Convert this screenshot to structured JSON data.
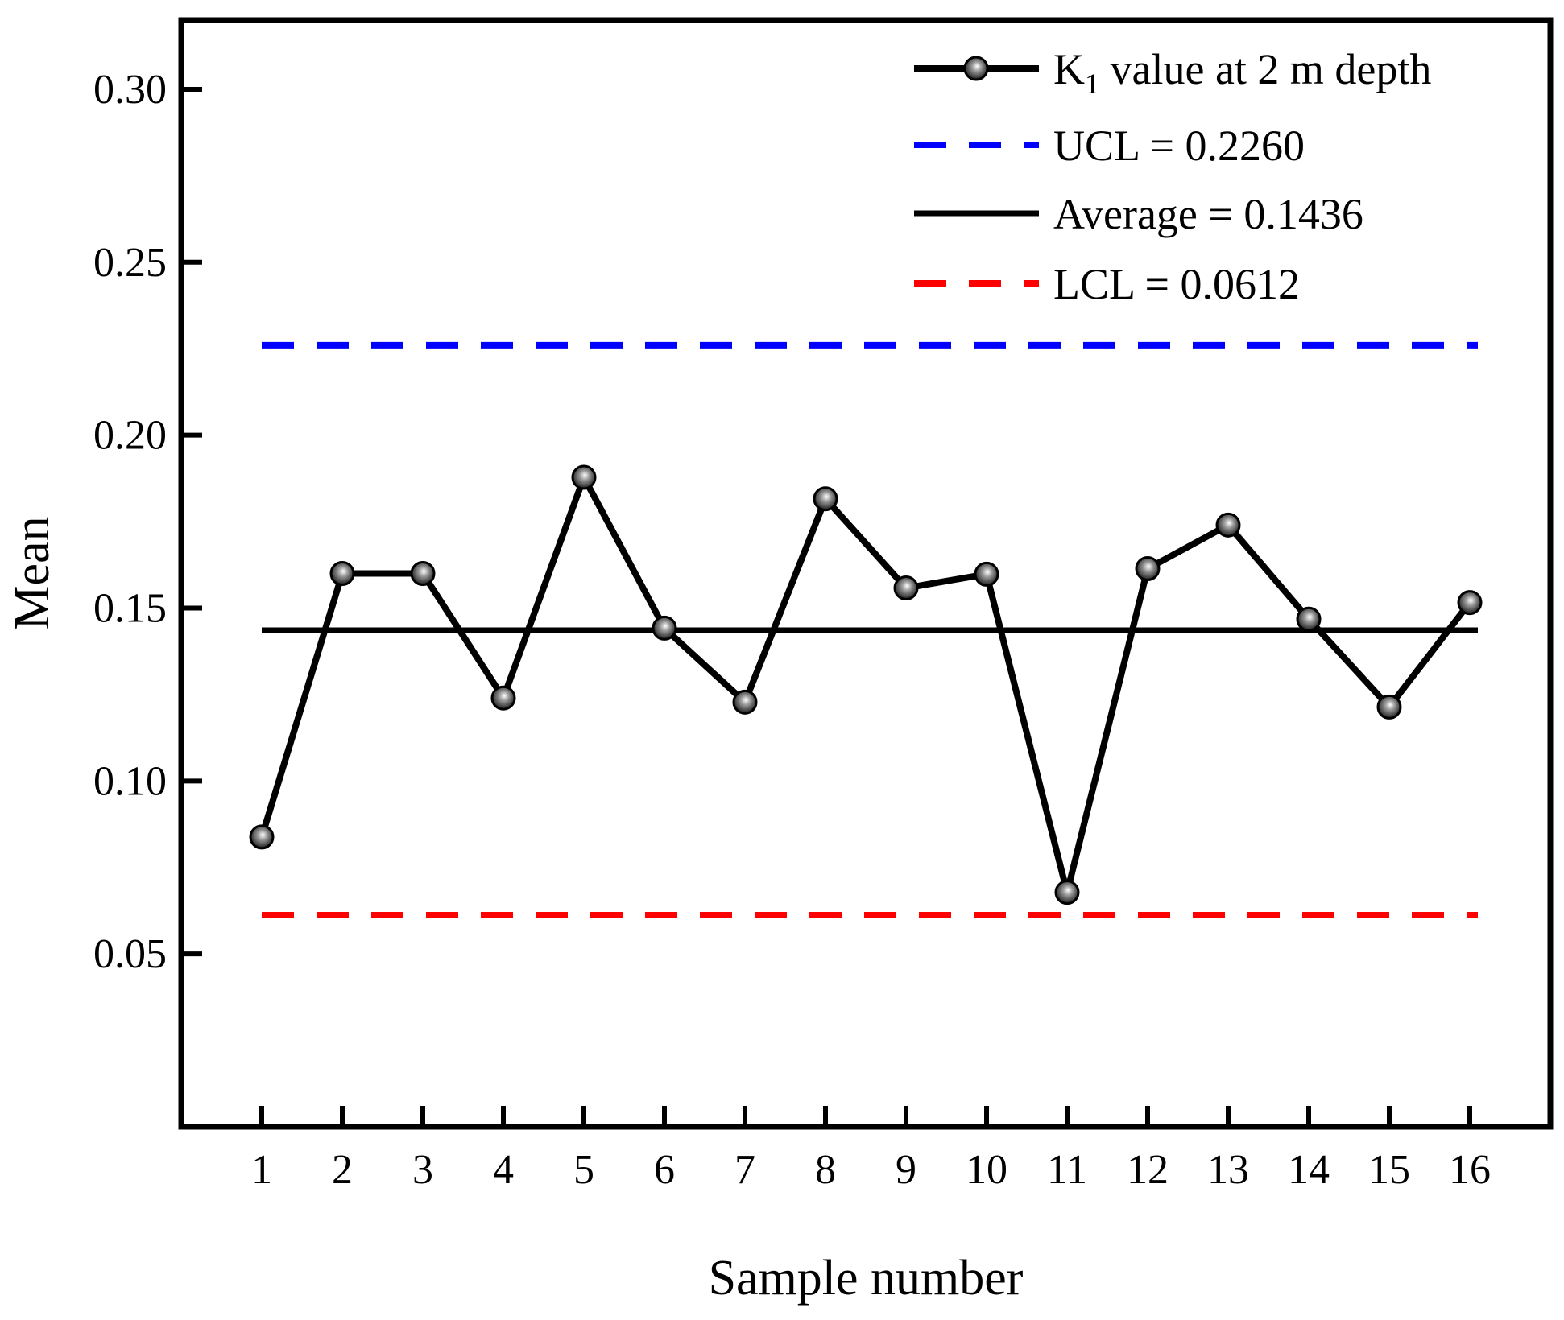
{
  "chart_data": {
    "type": "line",
    "title": "",
    "xlabel": "Sample number",
    "ylabel": "Mean",
    "xlim": [
      0,
      17
    ],
    "ylim": [
      0,
      0.32
    ],
    "x_ticks": [
      1,
      2,
      3,
      4,
      5,
      6,
      7,
      8,
      9,
      10,
      11,
      12,
      13,
      14,
      15,
      16
    ],
    "x_tick_labels": [
      "1",
      "2",
      "3",
      "4",
      "5",
      "6",
      "7",
      "8",
      "9",
      "10",
      "11",
      "12",
      "13",
      "14",
      "15",
      "16"
    ],
    "y_ticks": [
      0.05,
      0.1,
      0.15,
      0.2,
      0.25,
      0.3
    ],
    "y_tick_labels": [
      "0.05",
      "0.10",
      "0.15",
      "0.20",
      "0.25",
      "0.30"
    ],
    "grid": false,
    "legend_position": "top-right",
    "series": [
      {
        "name": "K1 value at 2 m depth",
        "legend_main": "K",
        "legend_sub": "1",
        "legend_rest": " value at 2 m depth",
        "x": [
          1,
          2,
          3,
          4,
          5,
          6,
          7,
          8,
          9,
          10,
          11,
          12,
          13,
          14,
          15,
          16
        ],
        "values": [
          0.0838,
          0.16,
          0.16,
          0.124,
          0.1878,
          0.1442,
          0.1228,
          0.1816,
          0.1558,
          0.1598,
          0.0678,
          0.1614,
          0.174,
          0.1468,
          0.1214,
          0.1516
        ],
        "color": "#000000",
        "marker": "circle"
      }
    ],
    "reference_lines": [
      {
        "name": "UCL",
        "label": "UCL = 0.2260",
        "value": 0.226,
        "color": "#0000ff",
        "style": "dashed"
      },
      {
        "name": "Average",
        "label": "Average = 0.1436",
        "value": 0.1436,
        "color": "#000000",
        "style": "solid"
      },
      {
        "name": "LCL",
        "label": "LCL = 0.0612",
        "value": 0.0612,
        "color": "#ff0000",
        "style": "dashed"
      }
    ]
  }
}
